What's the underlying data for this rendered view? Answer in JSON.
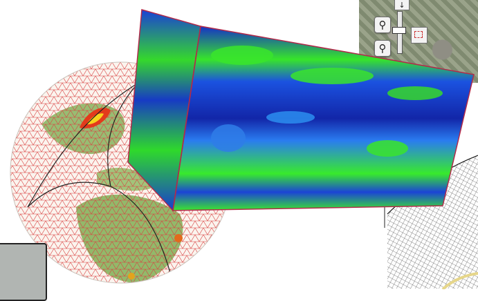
{
  "figure": {
    "icons": {
      "zoom_in": "zoom-in-icon",
      "zoom_out": "zoom-out-icon",
      "zoom_up": "arrow-down-icon",
      "select": "box-select-icon"
    },
    "colors": {
      "globe_grid": "#d94141",
      "land": "#7fae52",
      "hotspot": "#e33a1c",
      "cube_low": "#1a3ccf",
      "cube_high": "#39ef2a",
      "mesh_lines": "#111111"
    },
    "zoom_level_fraction": 0.55
  }
}
